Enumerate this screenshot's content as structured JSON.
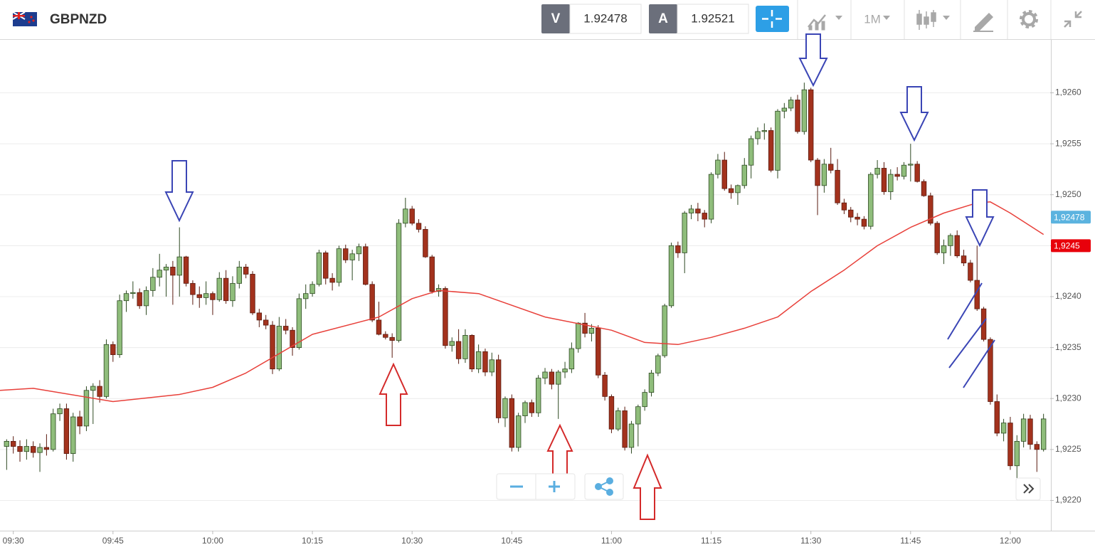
{
  "header": {
    "symbol": "GBPNZD",
    "sell_label": "V",
    "sell_price": "1.92478",
    "buy_label": "A",
    "buy_price": "1.92521",
    "timeframe": "1M"
  },
  "chart_data": {
    "type": "candlestick",
    "x": [
      "09:29",
      "09:30",
      "09:31",
      "09:32",
      "09:33",
      "09:34",
      "09:35",
      "09:36",
      "09:37",
      "09:38",
      "09:39",
      "09:40",
      "09:41",
      "09:42",
      "09:43",
      "09:44",
      "09:45",
      "09:46",
      "09:47",
      "09:48",
      "09:49",
      "09:50",
      "09:51",
      "09:52",
      "09:53",
      "09:54",
      "09:55",
      "09:56",
      "09:57",
      "09:58",
      "09:59",
      "10:00",
      "10:01",
      "10:02",
      "10:03",
      "10:04",
      "10:05",
      "10:06",
      "10:07",
      "10:08",
      "10:09",
      "10:10",
      "10:11",
      "10:12",
      "10:13",
      "10:14",
      "10:15",
      "10:16",
      "10:17",
      "10:18",
      "10:19",
      "10:20",
      "10:21",
      "10:22",
      "10:23",
      "10:24",
      "10:25",
      "10:26",
      "10:27",
      "10:28",
      "10:29",
      "10:30",
      "10:31",
      "10:32",
      "10:33",
      "10:34",
      "10:35",
      "10:36",
      "10:37",
      "10:38",
      "10:39",
      "10:40",
      "10:41",
      "10:42",
      "10:43",
      "10:44",
      "10:45",
      "10:46",
      "10:47",
      "10:48",
      "10:49",
      "10:50",
      "10:51",
      "10:52",
      "10:53",
      "10:54",
      "10:55",
      "10:56",
      "10:57",
      "10:58",
      "10:59",
      "11:00",
      "11:01",
      "11:02",
      "11:03",
      "11:04",
      "11:05",
      "11:06",
      "11:07",
      "11:08",
      "11:09",
      "11:10",
      "11:11",
      "11:12",
      "11:13",
      "11:14",
      "11:15",
      "11:16",
      "11:17",
      "11:18",
      "11:19",
      "11:20",
      "11:21",
      "11:22",
      "11:23",
      "11:24",
      "11:25",
      "11:26",
      "11:27",
      "11:28",
      "11:29",
      "11:30",
      "11:31",
      "11:32",
      "11:33",
      "11:34",
      "11:35",
      "11:36",
      "11:37",
      "11:38",
      "11:39",
      "11:40",
      "11:41",
      "11:42",
      "11:43",
      "11:44",
      "11:45",
      "11:46",
      "11:47",
      "11:48",
      "11:49",
      "11:50",
      "11:51",
      "11:52",
      "11:53",
      "11:54",
      "11:55",
      "11:56",
      "11:57",
      "11:58",
      "11:59",
      "12:00",
      "12:01",
      "12:02",
      "12:03",
      "12:04",
      "12:05"
    ],
    "open": [
      1.92253,
      1.92258,
      1.92253,
      1.92248,
      1.92253,
      1.92247,
      1.92252,
      1.9225,
      1.92285,
      1.9229,
      1.92246,
      1.92282,
      1.92273,
      1.92308,
      1.92312,
      1.92302,
      1.92353,
      1.92343,
      1.92396,
      1.92403,
      1.92404,
      1.92391,
      1.92406,
      1.92419,
      1.92426,
      1.92429,
      1.92421,
      1.92439,
      1.92413,
      1.92402,
      1.92399,
      1.92403,
      1.92397,
      1.92418,
      1.92396,
      1.92413,
      1.92429,
      1.92422,
      1.92384,
      1.92377,
      1.92372,
      1.92329,
      1.92371,
      1.92367,
      1.9235,
      1.92398,
      1.92403,
      1.92412,
      1.92443,
      1.92418,
      1.92414,
      1.92447,
      1.92436,
      1.92442,
      1.92449,
      1.92412,
      1.92377,
      1.92363,
      1.9236,
      1.92357,
      1.92472,
      1.92486,
      1.92472,
      1.92466,
      1.92439,
      1.92405,
      1.92408,
      1.92352,
      1.92356,
      1.92339,
      1.92362,
      1.92329,
      1.92346,
      1.92326,
      1.92338,
      1.92281,
      1.923,
      1.92252,
      1.92283,
      1.92296,
      1.92286,
      1.9232,
      1.92326,
      1.92314,
      1.92326,
      1.92329,
      1.92349,
      1.92374,
      1.92364,
      1.92369,
      1.92323,
      1.92302,
      1.9227,
      1.92288,
      1.92252,
      1.92275,
      1.92292,
      1.92306,
      1.92325,
      1.92342,
      1.92391,
      1.9245,
      1.92443,
      1.92482,
      1.92486,
      1.92482,
      1.92476,
      1.9252,
      1.92534,
      1.92506,
      1.92502,
      1.92509,
      1.92529,
      1.92555,
      1.92562,
      1.92563,
      1.92524,
      1.92582,
      1.92585,
      1.92593,
      1.92562,
      1.92603,
      1.92534,
      1.92509,
      1.9253,
      1.92524,
      1.92492,
      1.92485,
      1.92478,
      1.92476,
      1.92469,
      1.9252,
      1.92526,
      1.92503,
      1.9252,
      1.92518,
      1.92529,
      1.9253,
      1.92513,
      1.92499,
      1.92472,
      1.92443,
      1.9245,
      1.9246,
      1.9244,
      1.92433,
      1.92416,
      1.92388,
      1.92358,
      1.92297,
      1.92266,
      1.92276,
      1.92234,
      1.92258,
      1.9228,
      1.92255,
      1.9225
    ],
    "high": [
      1.9226,
      1.92263,
      1.92259,
      1.9226,
      1.92258,
      1.92256,
      1.92265,
      1.9229,
      1.92295,
      1.92295,
      1.92286,
      1.92288,
      1.92312,
      1.92315,
      1.92318,
      1.92358,
      1.92356,
      1.92402,
      1.92406,
      1.92415,
      1.92408,
      1.9241,
      1.92428,
      1.92442,
      1.92432,
      1.92435,
      1.92468,
      1.9244,
      1.92416,
      1.9241,
      1.92415,
      1.92405,
      1.92424,
      1.92426,
      1.9242,
      1.92435,
      1.92432,
      1.92425,
      1.92388,
      1.92382,
      1.92376,
      1.9238,
      1.92378,
      1.9237,
      1.92403,
      1.92412,
      1.92415,
      1.92446,
      1.92445,
      1.92423,
      1.9245,
      1.92451,
      1.92446,
      1.92452,
      1.92452,
      1.92415,
      1.92395,
      1.92366,
      1.92364,
      1.92476,
      1.92497,
      1.92489,
      1.92476,
      1.92469,
      1.92441,
      1.92412,
      1.9241,
      1.9236,
      1.92368,
      1.92368,
      1.92363,
      1.92353,
      1.92349,
      1.92345,
      1.92343,
      1.92302,
      1.92304,
      1.92286,
      1.92298,
      1.92299,
      1.92323,
      1.9233,
      1.92329,
      1.92328,
      1.92336,
      1.92355,
      1.92375,
      1.92384,
      1.92373,
      1.92372,
      1.92326,
      1.92304,
      1.92291,
      1.92292,
      1.92278,
      1.92294,
      1.92309,
      1.92328,
      1.92344,
      1.92393,
      1.92453,
      1.92454,
      1.92484,
      1.9249,
      1.92492,
      1.92485,
      1.92522,
      1.9254,
      1.92542,
      1.9251,
      1.9251,
      1.92536,
      1.92558,
      1.92566,
      1.9257,
      1.92566,
      1.92584,
      1.9259,
      1.92596,
      1.92598,
      1.9261,
      1.92605,
      1.92536,
      1.92535,
      1.92546,
      1.92535,
      1.92496,
      1.92488,
      1.92482,
      1.92479,
      1.92522,
      1.92534,
      1.92532,
      1.92525,
      1.92527,
      1.92532,
      1.9255,
      1.92533,
      1.92515,
      1.92502,
      1.92474,
      1.92456,
      1.92462,
      1.92465,
      1.92446,
      1.92436,
      1.9245,
      1.9239,
      1.9236,
      1.92304,
      1.9228,
      1.92282,
      1.92264,
      1.92285,
      1.92284,
      1.92258,
      1.92285
    ],
    "low": [
      1.9223,
      1.92246,
      1.92238,
      1.9224,
      1.92242,
      1.92228,
      1.92244,
      1.92248,
      1.92278,
      1.9224,
      1.92238,
      1.92265,
      1.92268,
      1.92275,
      1.92296,
      1.923,
      1.92336,
      1.9234,
      1.92385,
      1.92398,
      1.92388,
      1.92382,
      1.924,
      1.9241,
      1.924,
      1.92392,
      1.924,
      1.9241,
      1.92392,
      1.92389,
      1.92392,
      1.92382,
      1.92395,
      1.92393,
      1.9239,
      1.92408,
      1.92418,
      1.92382,
      1.9237,
      1.92368,
      1.92324,
      1.92327,
      1.92363,
      1.92342,
      1.92348,
      1.92388,
      1.924,
      1.9241,
      1.92412,
      1.92406,
      1.9241,
      1.92433,
      1.92416,
      1.92435,
      1.92411,
      1.92375,
      1.92362,
      1.92358,
      1.9234,
      1.92355,
      1.92468,
      1.9247,
      1.92463,
      1.92438,
      1.92403,
      1.924,
      1.92349,
      1.92346,
      1.92334,
      1.92335,
      1.92326,
      1.92325,
      1.92322,
      1.92322,
      1.92276,
      1.92272,
      1.92248,
      1.92248,
      1.92276,
      1.92282,
      1.92282,
      1.92314,
      1.92309,
      1.9228,
      1.9232,
      1.92325,
      1.92345,
      1.9236,
      1.92356,
      1.9232,
      1.92298,
      1.92266,
      1.92268,
      1.92249,
      1.92246,
      1.92253,
      1.92288,
      1.92302,
      1.92322,
      1.9234,
      1.92389,
      1.92438,
      1.92423,
      1.92476,
      1.92474,
      1.92468,
      1.92472,
      1.92516,
      1.92504,
      1.92496,
      1.9249,
      1.92506,
      1.92516,
      1.92549,
      1.92554,
      1.92522,
      1.92516,
      1.92575,
      1.92582,
      1.9256,
      1.92559,
      1.92532,
      1.9248,
      1.92502,
      1.92521,
      1.9249,
      1.92481,
      1.92473,
      1.9247,
      1.92466,
      1.92466,
      1.92516,
      1.925,
      1.92495,
      1.92514,
      1.92515,
      1.92513,
      1.92512,
      1.92498,
      1.9247,
      1.92441,
      1.92432,
      1.9244,
      1.92438,
      1.9243,
      1.92414,
      1.92386,
      1.92356,
      1.92294,
      1.92263,
      1.92258,
      1.9223,
      1.92222,
      1.92252,
      1.9225,
      1.92228,
      1.92248
    ],
    "close": [
      1.92258,
      1.92253,
      1.92248,
      1.92253,
      1.92247,
      1.92252,
      1.9225,
      1.92285,
      1.9229,
      1.92246,
      1.92282,
      1.92273,
      1.92308,
      1.92312,
      1.92302,
      1.92353,
      1.92343,
      1.92396,
      1.92403,
      1.92404,
      1.92391,
      1.92406,
      1.92419,
      1.92426,
      1.92429,
      1.92421,
      1.92439,
      1.92413,
      1.92402,
      1.92399,
      1.92403,
      1.92397,
      1.92418,
      1.92396,
      1.92413,
      1.92429,
      1.92422,
      1.92384,
      1.92377,
      1.92372,
      1.92329,
      1.92371,
      1.92367,
      1.9235,
      1.92398,
      1.92403,
      1.92412,
      1.92443,
      1.92418,
      1.92414,
      1.92447,
      1.92436,
      1.92442,
      1.92449,
      1.92412,
      1.92377,
      1.92363,
      1.9236,
      1.92357,
      1.92472,
      1.92486,
      1.92472,
      1.92466,
      1.92439,
      1.92405,
      1.92408,
      1.92352,
      1.92356,
      1.92339,
      1.92362,
      1.92329,
      1.92346,
      1.92326,
      1.92338,
      1.92281,
      1.923,
      1.92252,
      1.92283,
      1.92296,
      1.92286,
      1.9232,
      1.92326,
      1.92314,
      1.92326,
      1.92329,
      1.92349,
      1.92374,
      1.92364,
      1.92369,
      1.92323,
      1.92302,
      1.9227,
      1.92288,
      1.92252,
      1.92275,
      1.92292,
      1.92306,
      1.92325,
      1.92342,
      1.92391,
      1.9245,
      1.92443,
      1.92482,
      1.92486,
      1.92482,
      1.92476,
      1.9252,
      1.92534,
      1.92506,
      1.92502,
      1.92509,
      1.92529,
      1.92555,
      1.92562,
      1.92563,
      1.92524,
      1.92582,
      1.92585,
      1.92593,
      1.92562,
      1.92603,
      1.92534,
      1.92509,
      1.9253,
      1.92524,
      1.92492,
      1.92485,
      1.92478,
      1.92476,
      1.92469,
      1.9252,
      1.92526,
      1.92503,
      1.9252,
      1.92518,
      1.92529,
      1.9253,
      1.92513,
      1.92499,
      1.92472,
      1.92443,
      1.9245,
      1.9246,
      1.9244,
      1.92433,
      1.92416,
      1.92388,
      1.92358,
      1.92297,
      1.92266,
      1.92276,
      1.92234,
      1.92258,
      1.9228,
      1.92255,
      1.9225,
      1.9228
    ],
    "up_color": "#8fbd7b",
    "down_color": "#a3321d",
    "moving_average": {
      "color": "#e8403a",
      "x": [
        "09:28",
        "09:33",
        "09:45",
        "09:55",
        "10:00",
        "10:05",
        "10:15",
        "10:25",
        "10:30",
        "10:34",
        "10:40",
        "10:50",
        "11:00",
        "11:05",
        "11:10",
        "11:15",
        "11:20",
        "11:25",
        "11:30",
        "11:35",
        "11:40",
        "11:45",
        "11:50",
        "11:55",
        "11:57",
        "12:00",
        "12:05"
      ],
      "values": [
        1.92308,
        1.9231,
        1.92297,
        1.92304,
        1.92311,
        1.92325,
        1.92363,
        1.9238,
        1.92398,
        1.92406,
        1.92403,
        1.9238,
        1.92367,
        1.92355,
        1.92353,
        1.9236,
        1.92369,
        1.9238,
        1.92405,
        1.92426,
        1.9245,
        1.92468,
        1.92482,
        1.92492,
        1.92493,
        1.92482,
        1.92461
      ]
    },
    "price_tags": [
      {
        "value": 1.92478,
        "label": "1,92478",
        "color": "#5bb3df"
      },
      {
        "value": 1.9245,
        "label": "1,9245",
        "color": "#e8000b"
      }
    ],
    "xlim": [
      "09:28",
      "12:06"
    ],
    "xticks": [
      "09:30",
      "09:45",
      "10:00",
      "10:15",
      "10:30",
      "10:45",
      "11:00",
      "11:15",
      "11:30",
      "11:45",
      "12:00"
    ],
    "ylim": [
      1.92171,
      1.92652
    ],
    "yticks": [
      {
        "value": 1.922,
        "label": "1,9220"
      },
      {
        "value": 1.9225,
        "label": "1,9225"
      },
      {
        "value": 1.923,
        "label": "1,9230"
      },
      {
        "value": 1.9235,
        "label": "1,9235"
      },
      {
        "value": 1.924,
        "label": "1,9240"
      },
      {
        "value": 1.9245,
        "label": "1,9245"
      },
      {
        "value": 1.925,
        "label": "1,9250"
      },
      {
        "value": 1.9255,
        "label": "1,9255"
      },
      {
        "value": 1.926,
        "label": "1,9260"
      }
    ],
    "grid": true
  }
}
